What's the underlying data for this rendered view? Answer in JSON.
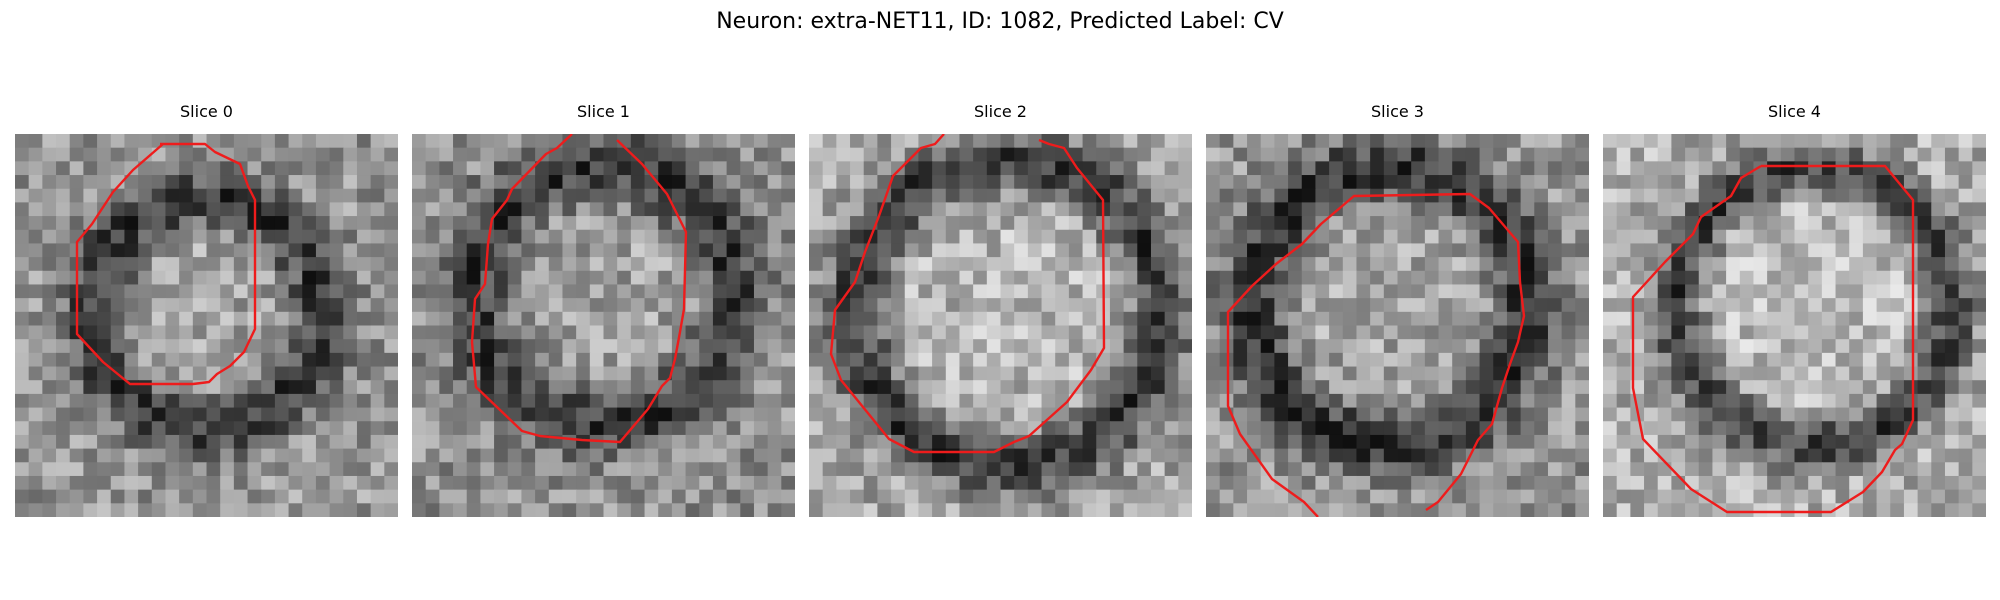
{
  "figure": {
    "title": "Neuron: extra-NET11, ID: 1082, Predicted Label: CV",
    "contour_color": "#ee1c1c",
    "panels": [
      {
        "title": "Slice 0"
      },
      {
        "title": "Slice 1"
      },
      {
        "title": "Slice 2"
      },
      {
        "title": "Slice 3"
      },
      {
        "title": "Slice 4"
      }
    ]
  }
}
